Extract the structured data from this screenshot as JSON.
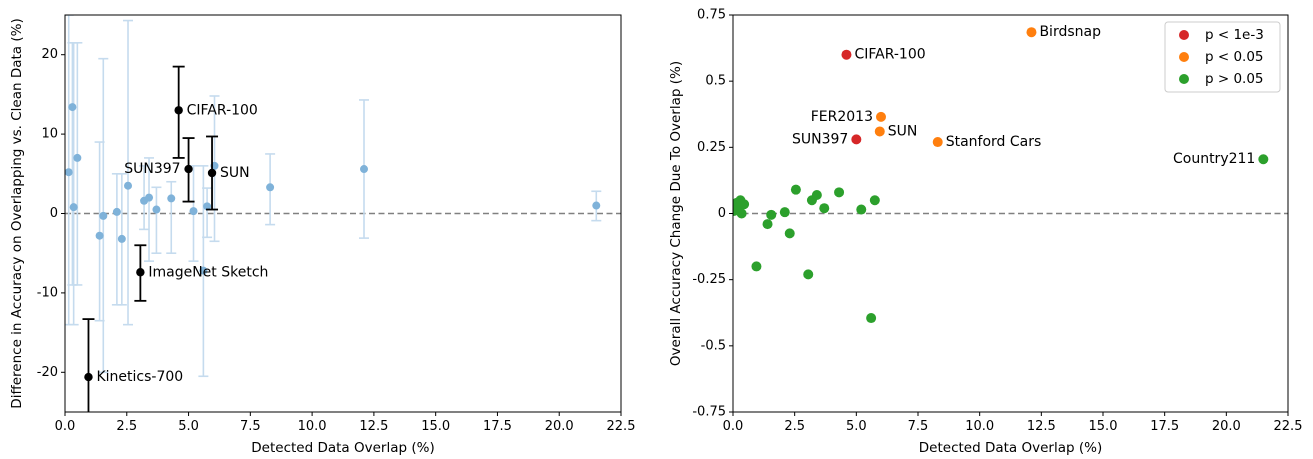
{
  "colors": {
    "faint_points": "#7fb2d9",
    "faint_errorbars": "#c5dbee",
    "highlight": "#000000",
    "zero_line": "#808080",
    "p_lt_1e3": "#d62728",
    "p_lt_005": "#ff7f0e",
    "p_gt_005": "#2ca02c"
  },
  "chart_data": [
    {
      "type": "scatter",
      "xlabel": "Detected Data Overlap (%)",
      "ylabel": "Difference in Accuracy on Overlapping vs. Clean Data (%)",
      "xlim": [
        0,
        22.5
      ],
      "ylim": [
        -25,
        25
      ],
      "xticks": [
        "0.0",
        "2.5",
        "5.0",
        "7.5",
        "10.0",
        "12.5",
        "15.0",
        "17.5",
        "20.0",
        "22.5"
      ],
      "yticks": [
        "-20",
        "-10",
        "0",
        "10",
        "20"
      ],
      "yticks_values": [
        -20,
        -10,
        0,
        10,
        20
      ],
      "xticks_values": [
        0,
        2.5,
        5,
        7.5,
        10,
        12.5,
        15,
        17.5,
        20,
        22.5
      ],
      "zero_line": 0,
      "unlabeled_points": [
        {
          "x": 0.15,
          "y": 5.2,
          "lo": -14,
          "hi": 25
        },
        {
          "x": 0.3,
          "y": 13.4,
          "lo": -9,
          "hi": 21.5
        },
        {
          "x": 0.35,
          "y": 0.8,
          "lo": -14,
          "hi": 21.5
        },
        {
          "x": 0.5,
          "y": 7.0,
          "lo": -9,
          "hi": 21.5
        },
        {
          "x": 1.4,
          "y": -2.8,
          "lo": -13.5,
          "hi": 9
        },
        {
          "x": 1.55,
          "y": -0.3,
          "lo": -20,
          "hi": 19.5
        },
        {
          "x": 2.1,
          "y": 0.2,
          "lo": -11.5,
          "hi": 5
        },
        {
          "x": 2.3,
          "y": -3.2,
          "lo": -11.5,
          "hi": 5
        },
        {
          "x": 2.55,
          "y": 3.5,
          "lo": -14,
          "hi": 24.3
        },
        {
          "x": 3.2,
          "y": 1.6,
          "lo": -2,
          "hi": 6
        },
        {
          "x": 3.4,
          "y": 2.0,
          "lo": -6,
          "hi": 7
        },
        {
          "x": 3.7,
          "y": 0.5,
          "lo": -5,
          "hi": 3.3
        },
        {
          "x": 4.3,
          "y": 1.9,
          "lo": -5,
          "hi": 4
        },
        {
          "x": 5.2,
          "y": 0.3,
          "lo": -6,
          "hi": 6
        },
        {
          "x": 5.6,
          "y": -7.2,
          "lo": -20.5,
          "hi": 6
        },
        {
          "x": 5.75,
          "y": 0.9,
          "lo": -3,
          "hi": 3.2
        },
        {
          "x": 6.05,
          "y": 6.0,
          "lo": -3.5,
          "hi": 14.8
        },
        {
          "x": 8.3,
          "y": 3.3,
          "lo": -1.4,
          "hi": 7.5
        },
        {
          "x": 12.1,
          "y": 5.6,
          "lo": -3.1,
          "hi": 14.3
        },
        {
          "x": 21.5,
          "y": 1.0,
          "lo": -0.9,
          "hi": 2.8
        }
      ],
      "labeled_points": [
        {
          "label": "CIFAR-100",
          "x": 4.6,
          "y": 13.0,
          "lo": 7.0,
          "hi": 18.5,
          "side": "right"
        },
        {
          "label": "SUN397",
          "x": 5.0,
          "y": 5.6,
          "lo": 1.5,
          "hi": 9.5,
          "side": "left"
        },
        {
          "label": "SUN",
          "x": 5.95,
          "y": 5.1,
          "lo": 0.5,
          "hi": 9.7,
          "side": "right"
        },
        {
          "label": "ImageNet Sketch",
          "x": 3.05,
          "y": -7.4,
          "lo": -11.0,
          "hi": -4.0,
          "side": "right"
        },
        {
          "label": "Kinetics-700",
          "x": 0.95,
          "y": -20.6,
          "lo": -27.0,
          "hi": -13.3,
          "side": "right"
        }
      ]
    },
    {
      "type": "scatter",
      "xlabel": "Detected Data Overlap (%)",
      "ylabel": "Overall Accuracy Change Due To Overlap (%)",
      "xlim": [
        0,
        22.5
      ],
      "ylim": [
        -0.75,
        0.75
      ],
      "xticks": [
        "0.0",
        "2.5",
        "5.0",
        "7.5",
        "10.0",
        "12.5",
        "15.0",
        "17.5",
        "20.0",
        "22.5"
      ],
      "xticks_values": [
        0,
        2.5,
        5,
        7.5,
        10,
        12.5,
        15,
        17.5,
        20,
        22.5
      ],
      "yticks": [
        "-0.75",
        "-0.5",
        "-0.25",
        "0",
        "0.25",
        "0.5",
        "0.75"
      ],
      "yticks_values": [
        -0.75,
        -0.5,
        -0.25,
        0,
        0.25,
        0.5,
        0.75
      ],
      "zero_line": 0,
      "legend": {
        "position": "top-right",
        "entries": [
          {
            "label": "p < 1e-3",
            "group": "p_lt_1e3"
          },
          {
            "label": "p < 0.05",
            "group": "p_lt_005"
          },
          {
            "label": "p > 0.05",
            "group": "p_gt_005"
          }
        ]
      },
      "labeled_points": [
        {
          "label": "CIFAR-100",
          "x": 4.6,
          "y": 0.6,
          "group": "p_lt_1e3",
          "side": "right"
        },
        {
          "label": "SUN397",
          "x": 5.0,
          "y": 0.28,
          "group": "p_lt_1e3",
          "side": "left"
        },
        {
          "label": "Birdsnap",
          "x": 12.1,
          "y": 0.685,
          "group": "p_lt_005",
          "side": "right"
        },
        {
          "label": "FER2013",
          "x": 6.0,
          "y": 0.365,
          "group": "p_lt_005",
          "side": "left"
        },
        {
          "label": "SUN",
          "x": 5.95,
          "y": 0.31,
          "group": "p_lt_005",
          "side": "right"
        },
        {
          "label": "Stanford Cars",
          "x": 8.3,
          "y": 0.27,
          "group": "p_lt_005",
          "side": "right"
        },
        {
          "label": "Country211",
          "x": 21.5,
          "y": 0.205,
          "group": "p_gt_005",
          "side": "left"
        }
      ],
      "unlabeled_points": [
        {
          "x": 0.05,
          "y": 0.01,
          "group": "p_gt_005"
        },
        {
          "x": 0.15,
          "y": 0.04,
          "group": "p_gt_005"
        },
        {
          "x": 0.25,
          "y": 0.025,
          "group": "p_gt_005"
        },
        {
          "x": 0.3,
          "y": 0.05,
          "group": "p_gt_005"
        },
        {
          "x": 0.35,
          "y": 0.0,
          "group": "p_gt_005"
        },
        {
          "x": 0.45,
          "y": 0.035,
          "group": "p_gt_005"
        },
        {
          "x": 0.95,
          "y": -0.2,
          "group": "p_gt_005"
        },
        {
          "x": 1.4,
          "y": -0.04,
          "group": "p_gt_005"
        },
        {
          "x": 1.55,
          "y": -0.005,
          "group": "p_gt_005"
        },
        {
          "x": 2.1,
          "y": 0.005,
          "group": "p_gt_005"
        },
        {
          "x": 2.3,
          "y": -0.075,
          "group": "p_gt_005"
        },
        {
          "x": 2.55,
          "y": 0.09,
          "group": "p_gt_005"
        },
        {
          "x": 3.05,
          "y": -0.23,
          "group": "p_gt_005"
        },
        {
          "x": 3.2,
          "y": 0.05,
          "group": "p_gt_005"
        },
        {
          "x": 3.4,
          "y": 0.07,
          "group": "p_gt_005"
        },
        {
          "x": 3.7,
          "y": 0.02,
          "group": "p_gt_005"
        },
        {
          "x": 4.3,
          "y": 0.08,
          "group": "p_gt_005"
        },
        {
          "x": 5.2,
          "y": 0.015,
          "group": "p_gt_005"
        },
        {
          "x": 5.6,
          "y": -0.395,
          "group": "p_gt_005"
        },
        {
          "x": 5.75,
          "y": 0.05,
          "group": "p_gt_005"
        }
      ]
    }
  ]
}
